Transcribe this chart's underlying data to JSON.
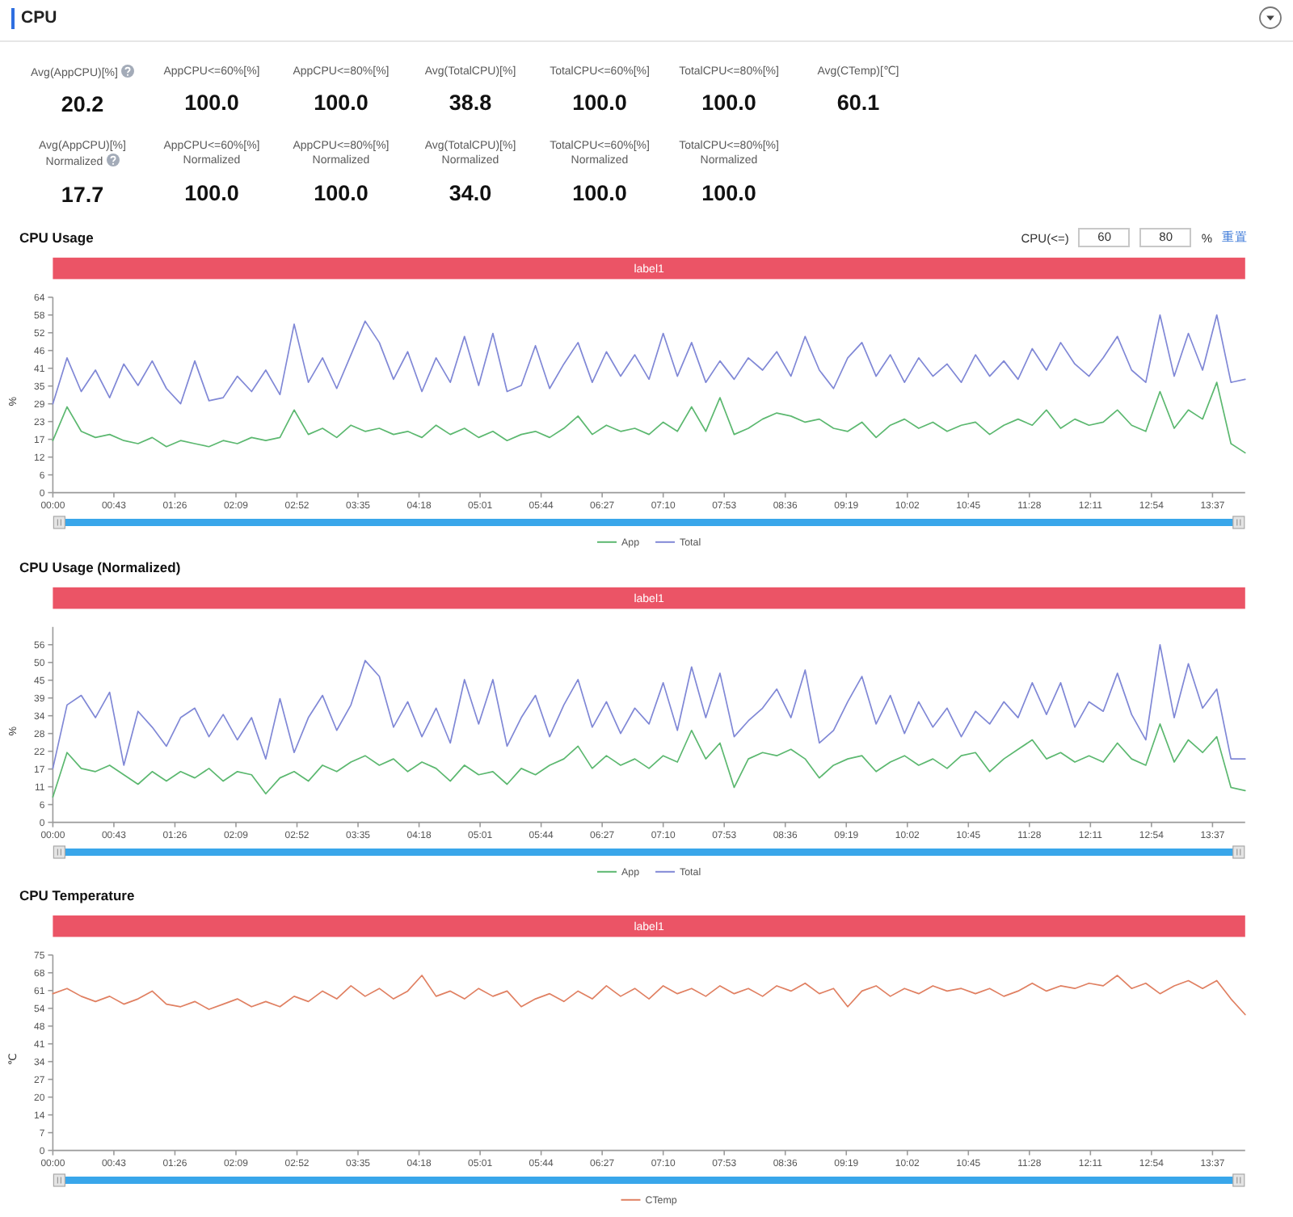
{
  "chart_data": [
    {
      "type": "other",
      "title": "CPU",
      "annotations": [
        "Avg(AppCPU)[%]",
        "20.2",
        "AppCPU<=60%[%]",
        "100.0",
        "AppCPU<=80%[%]",
        "100.0",
        "Avg(TotalCPU)[%]",
        "38.8",
        "TotalCPU<=60%[%]",
        "100.0",
        "TotalCPU<=80%[%]",
        "100.0",
        "Avg(CTemp)[℃]",
        "60.1",
        "Avg(AppCPU)[%] Normalized",
        "17.7",
        "AppCPU<=60%[%] Normalized",
        "100.0",
        "AppCPU<=80%[%] Normalized",
        "100.0",
        "Avg(TotalCPU)[%] Normalized",
        "34.0",
        "TotalCPU<=60%[%] Normalized",
        "100.0",
        "TotalCPU<=80%[%] Normalized",
        "100.0"
      ]
    },
    {
      "type": "line",
      "title": "CPU Usage",
      "ylabel": "%",
      "legend": "bottom",
      "annotations": [
        "label1",
        "CPU(<=)",
        "60",
        "80",
        "%",
        "重置"
      ],
      "xlim": [
        0,
        840
      ],
      "xticks": [
        {
          "value": 0,
          "label": "00:00"
        },
        {
          "value": 43,
          "label": "00:43"
        },
        {
          "value": 86,
          "label": "01:26"
        },
        {
          "value": 129,
          "label": "02:09"
        },
        {
          "value": 172,
          "label": "02:52"
        },
        {
          "value": 215,
          "label": "03:35"
        },
        {
          "value": 258,
          "label": "04:18"
        },
        {
          "value": 301,
          "label": "05:01"
        },
        {
          "value": 344,
          "label": "05:44"
        },
        {
          "value": 387,
          "label": "06:27"
        },
        {
          "value": 430,
          "label": "07:10"
        },
        {
          "value": 473,
          "label": "07:53"
        },
        {
          "value": 516,
          "label": "08:36"
        },
        {
          "value": 559,
          "label": "09:19"
        },
        {
          "value": 602,
          "label": "10:02"
        },
        {
          "value": 645,
          "label": "10:45"
        },
        {
          "value": 688,
          "label": "11:28"
        },
        {
          "value": 731,
          "label": "12:11"
        },
        {
          "value": 774,
          "label": "12:54"
        },
        {
          "value": 817,
          "label": "13:37"
        }
      ],
      "ylim": [
        0,
        63.8
      ],
      "yticks": [
        0,
        {
          "value": 5.8,
          "label": "6"
        },
        {
          "value": 11.6,
          "label": "12"
        },
        {
          "value": 17.4,
          "label": "17"
        },
        {
          "value": 23.2,
          "label": "23"
        },
        29,
        {
          "value": 34.8,
          "label": "35"
        },
        {
          "value": 40.6,
          "label": "41"
        },
        {
          "value": 46.4,
          "label": "46"
        },
        {
          "value": 52.2,
          "label": "52"
        },
        58,
        {
          "value": 63.8,
          "label": "64"
        }
      ],
      "x": [
        0,
        10,
        20,
        30,
        40,
        50,
        60,
        70,
        80,
        90,
        100,
        110,
        120,
        130,
        140,
        150,
        160,
        170,
        180,
        190,
        200,
        210,
        220,
        230,
        240,
        250,
        260,
        270,
        280,
        290,
        300,
        310,
        320,
        330,
        340,
        350,
        360,
        370,
        380,
        390,
        400,
        410,
        420,
        430,
        440,
        450,
        460,
        470,
        480,
        490,
        500,
        510,
        520,
        530,
        540,
        550,
        560,
        570,
        580,
        590,
        600,
        610,
        620,
        630,
        640,
        650,
        660,
        670,
        680,
        690,
        700,
        710,
        720,
        730,
        740,
        750,
        760,
        770,
        780,
        790,
        800,
        810,
        820,
        830,
        840
      ],
      "series": [
        {
          "name": "App",
          "color": "#5cb870",
          "values": [
            17,
            28,
            20,
            18,
            19,
            17,
            16,
            18,
            15,
            17,
            16,
            15,
            17,
            16,
            18,
            17,
            18,
            27,
            19,
            21,
            18,
            22,
            20,
            21,
            19,
            20,
            18,
            22,
            19,
            21,
            18,
            20,
            17,
            19,
            20,
            18,
            21,
            25,
            19,
            22,
            20,
            21,
            19,
            23,
            20,
            28,
            20,
            31,
            19,
            21,
            24,
            26,
            25,
            23,
            24,
            21,
            20,
            23,
            18,
            22,
            24,
            21,
            23,
            20,
            22,
            23,
            19,
            22,
            24,
            22,
            27,
            21,
            24,
            22,
            23,
            27,
            22,
            20,
            33,
            21,
            27,
            24,
            36,
            16,
            13
          ]
        },
        {
          "name": "Total",
          "color": "#8088d6",
          "values": [
            29,
            44,
            33,
            40,
            31,
            42,
            35,
            43,
            34,
            29,
            43,
            30,
            31,
            38,
            33,
            40,
            32,
            55,
            36,
            44,
            34,
            45,
            56,
            49,
            37,
            46,
            33,
            44,
            36,
            51,
            35,
            52,
            33,
            35,
            48,
            34,
            42,
            49,
            36,
            46,
            38,
            45,
            37,
            52,
            38,
            49,
            36,
            43,
            37,
            44,
            40,
            46,
            38,
            51,
            40,
            34,
            44,
            49,
            38,
            45,
            36,
            44,
            38,
            42,
            36,
            45,
            38,
            43,
            37,
            47,
            40,
            49,
            42,
            38,
            44,
            51,
            40,
            36,
            58,
            38,
            52,
            40,
            58,
            36,
            37
          ]
        }
      ]
    },
    {
      "type": "line",
      "title": "CPU Usage (Normalized)",
      "ylabel": "%",
      "legend": "bottom",
      "annotations": [
        "label1"
      ],
      "xlim": [
        0,
        840
      ],
      "xticks": [
        {
          "value": 0,
          "label": "00:00"
        },
        {
          "value": 43,
          "label": "00:43"
        },
        {
          "value": 86,
          "label": "01:26"
        },
        {
          "value": 129,
          "label": "02:09"
        },
        {
          "value": 172,
          "label": "02:52"
        },
        {
          "value": 215,
          "label": "03:35"
        },
        {
          "value": 258,
          "label": "04:18"
        },
        {
          "value": 301,
          "label": "05:01"
        },
        {
          "value": 344,
          "label": "05:44"
        },
        {
          "value": 387,
          "label": "06:27"
        },
        {
          "value": 430,
          "label": "07:10"
        },
        {
          "value": 473,
          "label": "07:53"
        },
        {
          "value": 516,
          "label": "08:36"
        },
        {
          "value": 559,
          "label": "09:19"
        },
        {
          "value": 602,
          "label": "10:02"
        },
        {
          "value": 645,
          "label": "10:45"
        },
        {
          "value": 688,
          "label": "11:28"
        },
        {
          "value": 731,
          "label": "12:11"
        },
        {
          "value": 774,
          "label": "12:54"
        },
        {
          "value": 817,
          "label": "13:37"
        }
      ],
      "ylim": [
        0,
        61.6
      ],
      "yticks": [
        0,
        {
          "value": 5.6,
          "label": "6"
        },
        {
          "value": 11.2,
          "label": "11"
        },
        {
          "value": 16.8,
          "label": "17"
        },
        {
          "value": 22.4,
          "label": "22"
        },
        28,
        {
          "value": 33.6,
          "label": "34"
        },
        {
          "value": 39.2,
          "label": "39"
        },
        {
          "value": 44.8,
          "label": "45"
        },
        {
          "value": 50.4,
          "label": "50"
        },
        56
      ],
      "x": [
        0,
        10,
        20,
        30,
        40,
        50,
        60,
        70,
        80,
        90,
        100,
        110,
        120,
        130,
        140,
        150,
        160,
        170,
        180,
        190,
        200,
        210,
        220,
        230,
        240,
        250,
        260,
        270,
        280,
        290,
        300,
        310,
        320,
        330,
        340,
        350,
        360,
        370,
        380,
        390,
        400,
        410,
        420,
        430,
        440,
        450,
        460,
        470,
        480,
        490,
        500,
        510,
        520,
        530,
        540,
        550,
        560,
        570,
        580,
        590,
        600,
        610,
        620,
        630,
        640,
        650,
        660,
        670,
        680,
        690,
        700,
        710,
        720,
        730,
        740,
        750,
        760,
        770,
        780,
        790,
        800,
        810,
        820,
        830,
        840
      ],
      "series": [
        {
          "name": "App",
          "color": "#5cb870",
          "values": [
            8,
            22,
            17,
            16,
            18,
            15,
            12,
            16,
            13,
            16,
            14,
            17,
            13,
            16,
            15,
            9,
            14,
            16,
            13,
            18,
            16,
            19,
            21,
            18,
            20,
            16,
            19,
            17,
            13,
            18,
            15,
            16,
            12,
            17,
            15,
            18,
            20,
            24,
            17,
            21,
            18,
            20,
            17,
            21,
            19,
            29,
            20,
            25,
            11,
            20,
            22,
            21,
            23,
            20,
            14,
            18,
            20,
            21,
            16,
            19,
            21,
            18,
            20,
            17,
            21,
            22,
            16,
            20,
            23,
            26,
            20,
            22,
            19,
            21,
            19,
            25,
            20,
            18,
            31,
            19,
            26,
            22,
            27,
            11,
            10
          ]
        },
        {
          "name": "Total",
          "color": "#8088d6",
          "values": [
            17,
            37,
            40,
            33,
            41,
            18,
            35,
            30,
            24,
            33,
            36,
            27,
            34,
            26,
            33,
            20,
            39,
            22,
            33,
            40,
            29,
            37,
            51,
            46,
            30,
            38,
            27,
            36,
            25,
            45,
            31,
            45,
            24,
            33,
            40,
            27,
            37,
            45,
            30,
            38,
            28,
            36,
            31,
            44,
            29,
            49,
            33,
            47,
            27,
            32,
            36,
            42,
            33,
            48,
            25,
            29,
            38,
            46,
            31,
            40,
            28,
            38,
            30,
            36,
            27,
            35,
            31,
            38,
            33,
            44,
            34,
            44,
            30,
            38,
            35,
            47,
            34,
            26,
            56,
            33,
            50,
            36,
            42,
            20,
            20
          ]
        }
      ]
    },
    {
      "type": "line",
      "title": "CPU Temperature",
      "ylabel": "℃",
      "legend": "bottom",
      "annotations": [
        "label1"
      ],
      "xlim": [
        0,
        840
      ],
      "xticks": [
        {
          "value": 0,
          "label": "00:00"
        },
        {
          "value": 43,
          "label": "00:43"
        },
        {
          "value": 86,
          "label": "01:26"
        },
        {
          "value": 129,
          "label": "02:09"
        },
        {
          "value": 172,
          "label": "02:52"
        },
        {
          "value": 215,
          "label": "03:35"
        },
        {
          "value": 258,
          "label": "04:18"
        },
        {
          "value": 301,
          "label": "05:01"
        },
        {
          "value": 344,
          "label": "05:44"
        },
        {
          "value": 387,
          "label": "06:27"
        },
        {
          "value": 430,
          "label": "07:10"
        },
        {
          "value": 473,
          "label": "07:53"
        },
        {
          "value": 516,
          "label": "08:36"
        },
        {
          "value": 559,
          "label": "09:19"
        },
        {
          "value": 602,
          "label": "10:02"
        },
        {
          "value": 645,
          "label": "10:45"
        },
        {
          "value": 688,
          "label": "11:28"
        },
        {
          "value": 731,
          "label": "12:11"
        },
        {
          "value": 774,
          "label": "12:54"
        },
        {
          "value": 817,
          "label": "13:37"
        }
      ],
      "ylim": [
        0,
        74.8
      ],
      "yticks": [
        0,
        {
          "value": 6.8,
          "label": "7"
        },
        {
          "value": 13.6,
          "label": "14"
        },
        {
          "value": 20.4,
          "label": "20"
        },
        {
          "value": 27.2,
          "label": "27"
        },
        34,
        {
          "value": 40.8,
          "label": "41"
        },
        {
          "value": 47.6,
          "label": "48"
        },
        {
          "value": 54.4,
          "label": "54"
        },
        {
          "value": 61.2,
          "label": "61"
        },
        68,
        {
          "value": 74.8,
          "label": "75"
        }
      ],
      "x": [
        0,
        10,
        20,
        30,
        40,
        50,
        60,
        70,
        80,
        90,
        100,
        110,
        120,
        130,
        140,
        150,
        160,
        170,
        180,
        190,
        200,
        210,
        220,
        230,
        240,
        250,
        260,
        270,
        280,
        290,
        300,
        310,
        320,
        330,
        340,
        350,
        360,
        370,
        380,
        390,
        400,
        410,
        420,
        430,
        440,
        450,
        460,
        470,
        480,
        490,
        500,
        510,
        520,
        530,
        540,
        550,
        560,
        570,
        580,
        590,
        600,
        610,
        620,
        630,
        640,
        650,
        660,
        670,
        680,
        690,
        700,
        710,
        720,
        730,
        740,
        750,
        760,
        770,
        780,
        790,
        800,
        810,
        820,
        830,
        840
      ],
      "series": [
        {
          "name": "CTemp",
          "color": "#e08062",
          "values": [
            60,
            62,
            59,
            57,
            59,
            56,
            58,
            61,
            56,
            55,
            57,
            54,
            56,
            58,
            55,
            57,
            55,
            59,
            57,
            61,
            58,
            63,
            59,
            62,
            58,
            61,
            67,
            59,
            61,
            58,
            62,
            59,
            61,
            55,
            58,
            60,
            57,
            61,
            58,
            63,
            59,
            62,
            58,
            63,
            60,
            62,
            59,
            63,
            60,
            62,
            59,
            63,
            61,
            64,
            60,
            62,
            55,
            61,
            63,
            59,
            62,
            60,
            63,
            61,
            62,
            60,
            62,
            59,
            61,
            64,
            61,
            63,
            62,
            64,
            63,
            67,
            62,
            64,
            60,
            63,
            65,
            62,
            65,
            58,
            52
          ]
        }
      ]
    }
  ]
}
